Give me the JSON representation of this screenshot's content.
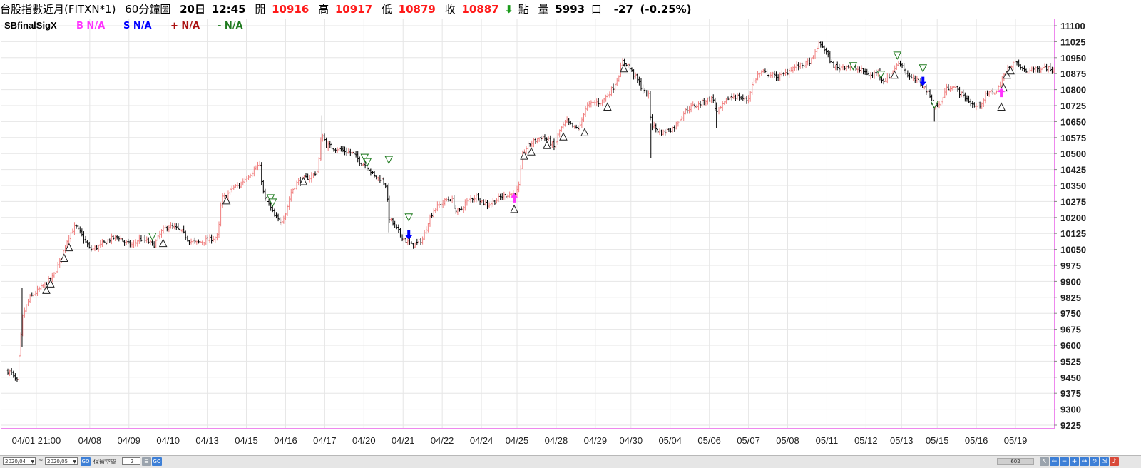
{
  "header": {
    "instrument": "台股指數近月(FITXN*1)",
    "period": "60分鐘圖",
    "date": "20日",
    "time": "12:45",
    "open_label": "開",
    "open": "10916",
    "high_label": "高",
    "high": "10917",
    "low_label": "低",
    "low": "10879",
    "close_label": "收",
    "close": "10887",
    "close_arrow": "down-arrow-icon",
    "unit_label": "點",
    "volume_label": "量",
    "volume": "5993",
    "volume_unit": "口",
    "change": "-27",
    "change_pct": "(-0.25%)"
  },
  "legend": {
    "name": "SBfinalSigX",
    "items": [
      {
        "text": "B N/A",
        "color": "#ff33ff"
      },
      {
        "text": "S N/A",
        "color": "#0000ff"
      },
      {
        "text": "+ N/A",
        "color": "#aa1111"
      },
      {
        "text": "- N/A",
        "color": "#1f7a1f"
      }
    ]
  },
  "colors": {
    "up": "#f08080",
    "down": "#000000",
    "grid": "#e6e6e6",
    "frame": "#ee88ee",
    "triangle_up": "#222222",
    "triangle_down": "#1f7a1f",
    "buy_arrow": "#ff33ff",
    "sell_arrow": "#0000ff",
    "header_red": "#ff1a1a",
    "header_green": "#1a9a1a"
  },
  "chart_data": {
    "type": "candlestick",
    "ylim": [
      9225,
      11100
    ],
    "yticks": [
      9225,
      9300,
      9375,
      9450,
      9525,
      9600,
      9675,
      9750,
      9825,
      9900,
      9975,
      10050,
      10125,
      10200,
      10275,
      10350,
      10425,
      10500,
      10575,
      10650,
      10725,
      10800,
      10875,
      10950,
      11025,
      11100
    ],
    "xticks": [
      "04/01 21:00",
      "04/08",
      "04/09",
      "04/10",
      "04/13",
      "04/15",
      "04/16",
      "04/17",
      "04/20",
      "04/21",
      "04/22",
      "04/24",
      "04/25",
      "04/28",
      "04/29",
      "04/30",
      "05/04",
      "05/06",
      "05/07",
      "05/08",
      "05/11",
      "05/12",
      "05/13",
      "05/15",
      "05/16",
      "05/19"
    ],
    "x_range": [
      0,
      1470
    ],
    "xtick_positions": [
      45,
      120,
      175,
      230,
      285,
      340,
      395,
      450,
      505,
      560,
      615,
      670,
      720,
      775,
      830,
      880,
      935,
      990,
      1045,
      1100,
      1155,
      1210,
      1260,
      1310,
      1365,
      1420
    ],
    "anchors": [
      [
        5,
        9480
      ],
      [
        10,
        9470
      ],
      [
        15,
        9440
      ],
      [
        18,
        9430
      ],
      [
        22,
        9600
      ],
      [
        26,
        9740
      ],
      [
        35,
        9820
      ],
      [
        45,
        9850
      ],
      [
        55,
        9880
      ],
      [
        68,
        9920
      ],
      [
        80,
        10010
      ],
      [
        90,
        10110
      ],
      [
        100,
        10160
      ],
      [
        110,
        10110
      ],
      [
        120,
        10050
      ],
      [
        130,
        10060
      ],
      [
        140,
        10080
      ],
      [
        150,
        10100
      ],
      [
        160,
        10110
      ],
      [
        170,
        10080
      ],
      [
        180,
        10070
      ],
      [
        190,
        10100
      ],
      [
        200,
        10090
      ],
      [
        210,
        10070
      ],
      [
        220,
        10130
      ],
      [
        230,
        10160
      ],
      [
        240,
        10150
      ],
      [
        250,
        10130
      ],
      [
        260,
        10090
      ],
      [
        270,
        10080
      ],
      [
        280,
        10090
      ],
      [
        290,
        10100
      ],
      [
        300,
        10110
      ],
      [
        305,
        10290
      ],
      [
        312,
        10300
      ],
      [
        320,
        10340
      ],
      [
        330,
        10350
      ],
      [
        340,
        10390
      ],
      [
        350,
        10420
      ],
      [
        358,
        10450
      ],
      [
        365,
        10290
      ],
      [
        372,
        10260
      ],
      [
        380,
        10200
      ],
      [
        388,
        10180
      ],
      [
        395,
        10220
      ],
      [
        403,
        10320
      ],
      [
        410,
        10360
      ],
      [
        420,
        10380
      ],
      [
        430,
        10390
      ],
      [
        440,
        10420
      ],
      [
        446,
        10600
      ],
      [
        452,
        10540
      ],
      [
        460,
        10530
      ],
      [
        470,
        10520
      ],
      [
        480,
        10510
      ],
      [
        490,
        10500
      ],
      [
        500,
        10460
      ],
      [
        510,
        10440
      ],
      [
        520,
        10390
      ],
      [
        530,
        10380
      ],
      [
        536,
        10350
      ],
      [
        540,
        10200
      ],
      [
        548,
        10160
      ],
      [
        556,
        10120
      ],
      [
        564,
        10090
      ],
      [
        572,
        10070
      ],
      [
        580,
        10080
      ],
      [
        588,
        10100
      ],
      [
        596,
        10190
      ],
      [
        604,
        10240
      ],
      [
        612,
        10260
      ],
      [
        620,
        10280
      ],
      [
        628,
        10290
      ],
      [
        634,
        10230
      ],
      [
        640,
        10230
      ],
      [
        648,
        10270
      ],
      [
        656,
        10290
      ],
      [
        664,
        10300
      ],
      [
        672,
        10270
      ],
      [
        680,
        10260
      ],
      [
        690,
        10280
      ],
      [
        700,
        10300
      ],
      [
        708,
        10310
      ],
      [
        715,
        10310
      ],
      [
        722,
        10330
      ],
      [
        728,
        10500
      ],
      [
        736,
        10540
      ],
      [
        745,
        10560
      ],
      [
        755,
        10580
      ],
      [
        765,
        10560
      ],
      [
        772,
        10530
      ],
      [
        780,
        10610
      ],
      [
        790,
        10650
      ],
      [
        800,
        10620
      ],
      [
        808,
        10620
      ],
      [
        815,
        10710
      ],
      [
        822,
        10730
      ],
      [
        830,
        10740
      ],
      [
        838,
        10740
      ],
      [
        846,
        10770
      ],
      [
        855,
        10810
      ],
      [
        862,
        10860
      ],
      [
        868,
        10930
      ],
      [
        875,
        10920
      ],
      [
        882,
        10880
      ],
      [
        890,
        10840
      ],
      [
        898,
        10790
      ],
      [
        905,
        10770
      ],
      [
        908,
        10640
      ],
      [
        914,
        10620
      ],
      [
        920,
        10600
      ],
      [
        926,
        10600
      ],
      [
        932,
        10610
      ],
      [
        940,
        10620
      ],
      [
        948,
        10660
      ],
      [
        956,
        10700
      ],
      [
        965,
        10720
      ],
      [
        975,
        10730
      ],
      [
        985,
        10750
      ],
      [
        995,
        10760
      ],
      [
        1000,
        10690
      ],
      [
        1008,
        10720
      ],
      [
        1016,
        10760
      ],
      [
        1025,
        10770
      ],
      [
        1035,
        10760
      ],
      [
        1044,
        10750
      ],
      [
        1050,
        10820
      ],
      [
        1058,
        10870
      ],
      [
        1066,
        10880
      ],
      [
        1075,
        10870
      ],
      [
        1085,
        10860
      ],
      [
        1095,
        10870
      ],
      [
        1105,
        10900
      ],
      [
        1115,
        10910
      ],
      [
        1125,
        10920
      ],
      [
        1135,
        10940
      ],
      [
        1142,
        11010
      ],
      [
        1148,
        11010
      ],
      [
        1155,
        10970
      ],
      [
        1162,
        10920
      ],
      [
        1170,
        10900
      ],
      [
        1178,
        10910
      ],
      [
        1186,
        10910
      ],
      [
        1194,
        10900
      ],
      [
        1202,
        10890
      ],
      [
        1210,
        10880
      ],
      [
        1218,
        10860
      ],
      [
        1226,
        10890
      ],
      [
        1234,
        10840
      ],
      [
        1242,
        10860
      ],
      [
        1250,
        10900
      ],
      [
        1258,
        10930
      ],
      [
        1266,
        10880
      ],
      [
        1274,
        10850
      ],
      [
        1282,
        10840
      ],
      [
        1290,
        10820
      ],
      [
        1298,
        10780
      ],
      [
        1306,
        10720
      ],
      [
        1314,
        10730
      ],
      [
        1322,
        10800
      ],
      [
        1330,
        10820
      ],
      [
        1338,
        10800
      ],
      [
        1346,
        10770
      ],
      [
        1354,
        10750
      ],
      [
        1362,
        10720
      ],
      [
        1370,
        10730
      ],
      [
        1378,
        10770
      ],
      [
        1386,
        10790
      ],
      [
        1394,
        10790
      ],
      [
        1402,
        10860
      ],
      [
        1410,
        10900
      ],
      [
        1418,
        10930
      ],
      [
        1426,
        10910
      ],
      [
        1434,
        10880
      ],
      [
        1442,
        10900
      ],
      [
        1450,
        10890
      ],
      [
        1458,
        10910
      ],
      [
        1466,
        10900
      ],
      [
        1474,
        10890
      ]
    ],
    "markers": [
      {
        "type": "tri-up",
        "x": 59,
        "y": 9860
      },
      {
        "type": "tri-up",
        "x": 65,
        "y": 9890
      },
      {
        "type": "tri-up",
        "x": 84,
        "y": 10010
      },
      {
        "type": "tri-up",
        "x": 91,
        "y": 10060
      },
      {
        "type": "tri-down",
        "x": 208,
        "y": 10110
      },
      {
        "type": "tri-up",
        "x": 223,
        "y": 10080
      },
      {
        "type": "tri-up",
        "x": 312,
        "y": 10280
      },
      {
        "type": "tri-down",
        "x": 374,
        "y": 10290
      },
      {
        "type": "tri-down",
        "x": 377,
        "y": 10270
      },
      {
        "type": "tri-up",
        "x": 420,
        "y": 10370
      },
      {
        "type": "tri-down",
        "x": 506,
        "y": 10480
      },
      {
        "type": "tri-down",
        "x": 510,
        "y": 10460
      },
      {
        "type": "tri-down",
        "x": 540,
        "y": 10470
      },
      {
        "type": "tri-down",
        "x": 568,
        "y": 10200
      },
      {
        "type": "tri-up",
        "x": 716,
        "y": 10240
      },
      {
        "type": "tri-up",
        "x": 730,
        "y": 10490
      },
      {
        "type": "tri-up",
        "x": 740,
        "y": 10510
      },
      {
        "type": "tri-up",
        "x": 762,
        "y": 10540
      },
      {
        "type": "tri-up",
        "x": 785,
        "y": 10580
      },
      {
        "type": "tri-up",
        "x": 815,
        "y": 10600
      },
      {
        "type": "tri-up",
        "x": 847,
        "y": 10720
      },
      {
        "type": "tri-up",
        "x": 870,
        "y": 10900
      },
      {
        "type": "tri-down",
        "x": 1192,
        "y": 10910
      },
      {
        "type": "tri-down",
        "x": 1231,
        "y": 10870
      },
      {
        "type": "tri-up",
        "x": 1250,
        "y": 10870
      },
      {
        "type": "tri-down",
        "x": 1254,
        "y": 10960
      },
      {
        "type": "tri-down",
        "x": 1290,
        "y": 10900
      },
      {
        "type": "tri-down",
        "x": 1306,
        "y": 10730
      },
      {
        "type": "tri-up",
        "x": 1400,
        "y": 10720
      },
      {
        "type": "tri-up",
        "x": 1403,
        "y": 10810
      },
      {
        "type": "tri-up",
        "x": 1408,
        "y": 10870
      },
      {
        "type": "tri-up",
        "x": 1413,
        "y": 10890
      },
      {
        "type": "buy",
        "x": 716,
        "y": 10290
      },
      {
        "type": "buy",
        "x": 1400,
        "y": 10785
      },
      {
        "type": "sell",
        "x": 568,
        "y": 10120
      },
      {
        "type": "sell",
        "x": 1290,
        "y": 10840
      }
    ]
  },
  "bottom": {
    "from_date": "2020/04",
    "to_date": "2020/05",
    "tilde": "~",
    "go_label": "GO",
    "interval_label": "保留空間",
    "interval_value": "2",
    "scroll_value": "602"
  }
}
